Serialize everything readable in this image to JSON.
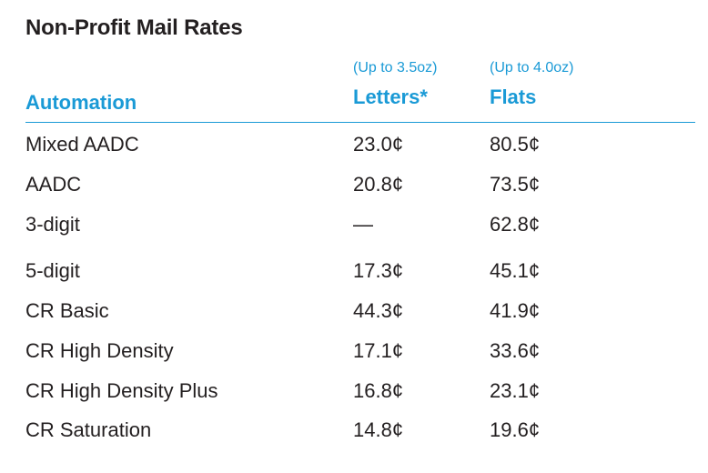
{
  "title": "Non-Profit Mail Rates",
  "notes": {
    "letters": "(Up to 3.5oz)",
    "flats": "(Up to 4.0oz)"
  },
  "headers": {
    "category": "Automation",
    "letters": "Letters*",
    "flats": "Flats"
  },
  "colors": {
    "accent": "#1a9ad6",
    "text": "#231f20"
  },
  "rows": [
    {
      "name": "Mixed AADC",
      "letters": "23.0¢",
      "flats": "80.5¢"
    },
    {
      "name": "AADC",
      "letters": "20.8¢",
      "flats": "73.5¢"
    },
    {
      "name": "3-digit",
      "letters": "—",
      "flats": "62.8¢"
    },
    {
      "name": "5-digit",
      "letters": "17.3¢",
      "flats": "45.1¢"
    },
    {
      "name": "CR Basic",
      "letters": "44.3¢",
      "flats": "41.9¢"
    },
    {
      "name": "CR High Density",
      "letters": "17.1¢",
      "flats": "33.6¢"
    },
    {
      "name": "CR High Density Plus",
      "letters": "16.8¢",
      "flats": "23.1¢"
    },
    {
      "name": "CR Saturation",
      "letters": "14.8¢",
      "flats": "19.6¢"
    }
  ]
}
